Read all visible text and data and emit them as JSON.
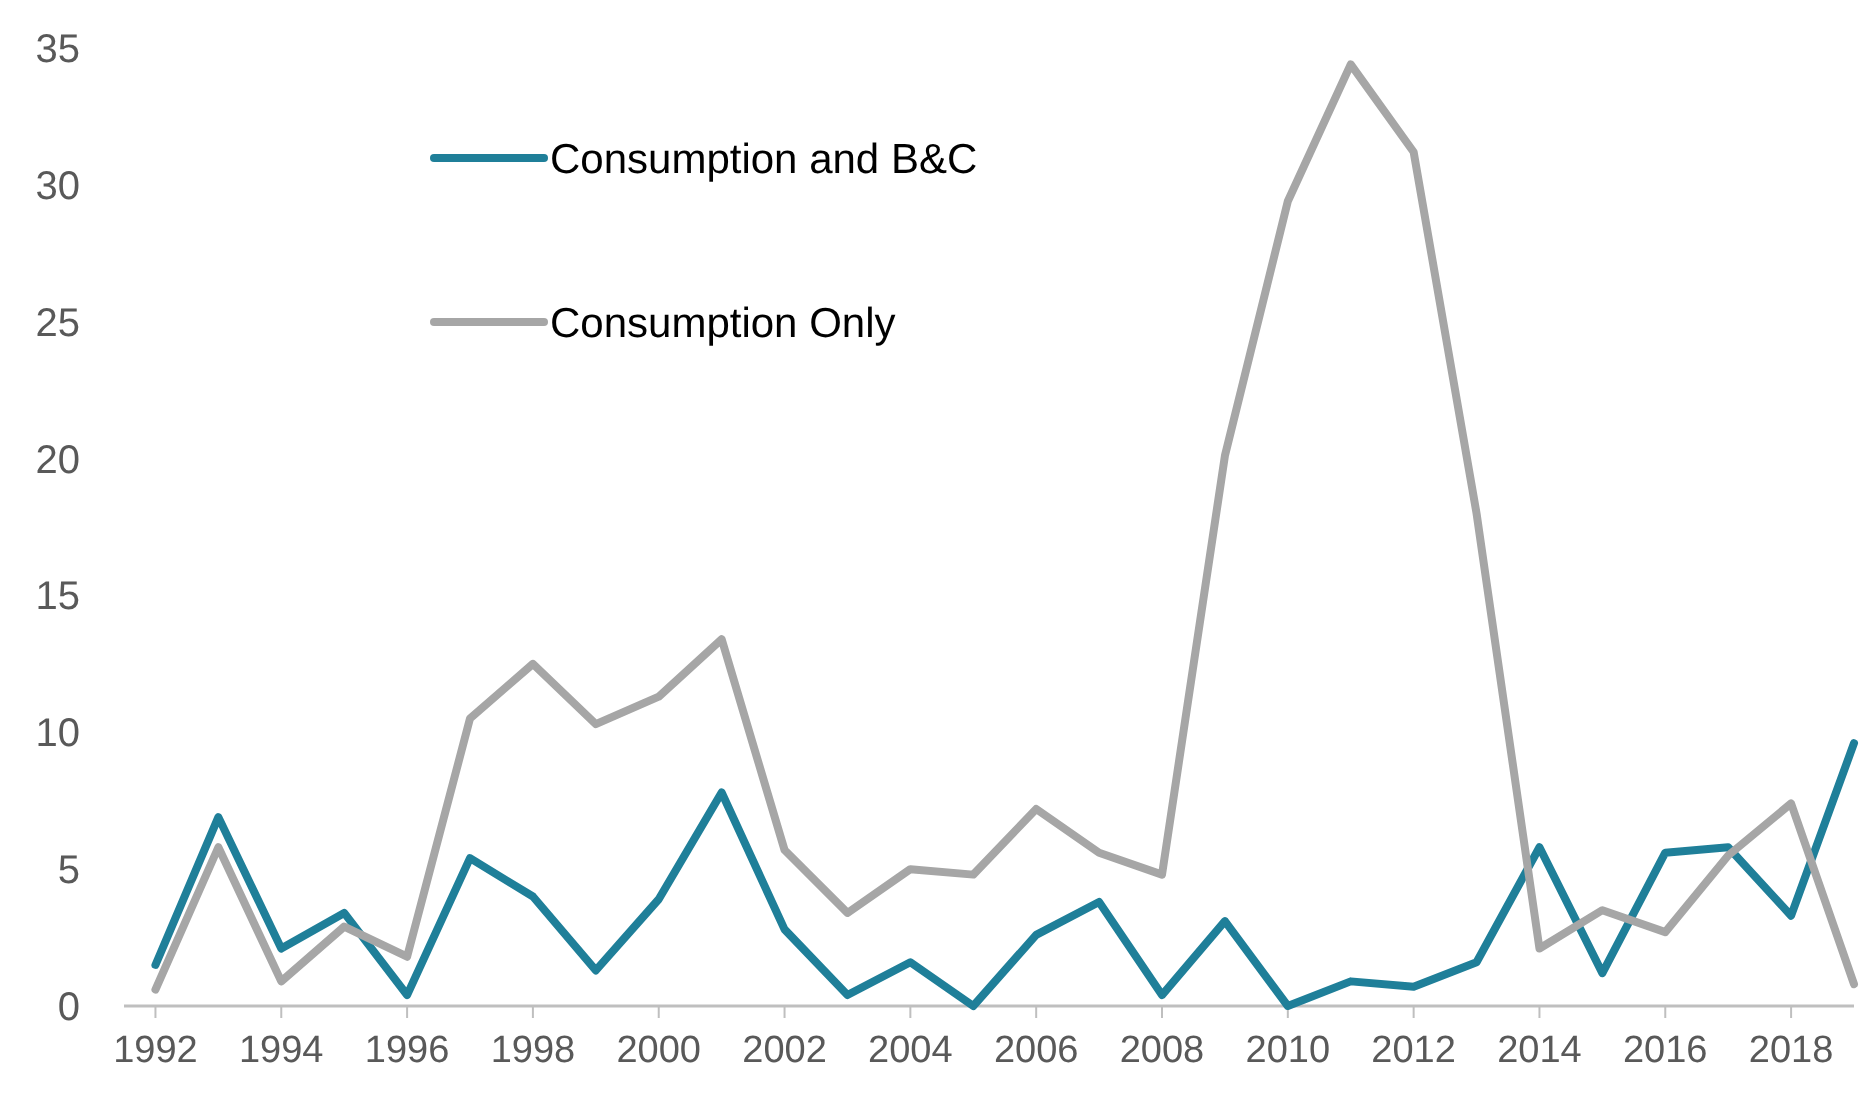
{
  "chart_data": {
    "type": "line",
    "x": [
      1992,
      1993,
      1994,
      1995,
      1996,
      1997,
      1998,
      1999,
      2000,
      2001,
      2002,
      2003,
      2004,
      2005,
      2006,
      2007,
      2008,
      2009,
      2010,
      2011,
      2012,
      2013,
      2014,
      2015,
      2016,
      2017,
      2018,
      2019
    ],
    "series": [
      {
        "name": "Consumption and B&C",
        "color": "#1f7f99",
        "values": [
          1.5,
          6.9,
          2.1,
          3.4,
          0.4,
          5.4,
          4.0,
          1.3,
          3.9,
          7.8,
          2.8,
          0.4,
          1.6,
          0,
          2.6,
          3.8,
          0.4,
          3.1,
          0,
          0.9,
          0.7,
          1.6,
          5.8,
          1.2,
          5.6,
          5.8,
          3.3,
          9.6
        ]
      },
      {
        "name": "Consumption Only",
        "color": "#a6a6a6",
        "values": [
          0.6,
          5.8,
          0.9,
          2.9,
          1.8,
          10.5,
          12.5,
          10.3,
          11.3,
          13.4,
          5.7,
          3.4,
          5.0,
          4.8,
          7.2,
          5.6,
          4.8,
          20.1,
          29.4,
          34.4,
          31.2,
          18.0,
          2.1,
          3.5,
          2.7,
          5.5,
          7.4,
          0.8
        ]
      }
    ],
    "xlim": [
      1991.5,
      2019
    ],
    "xticks": [
      1992,
      1994,
      1996,
      1998,
      2000,
      2002,
      2004,
      2006,
      2008,
      2010,
      2012,
      2014,
      2016,
      2018
    ],
    "ylim": [
      0,
      35
    ],
    "yticks": [
      0,
      5,
      10,
      15,
      20,
      25,
      30,
      35
    ],
    "grid": false,
    "legend": "top left",
    "marker": "none",
    "line_style": "solid"
  }
}
